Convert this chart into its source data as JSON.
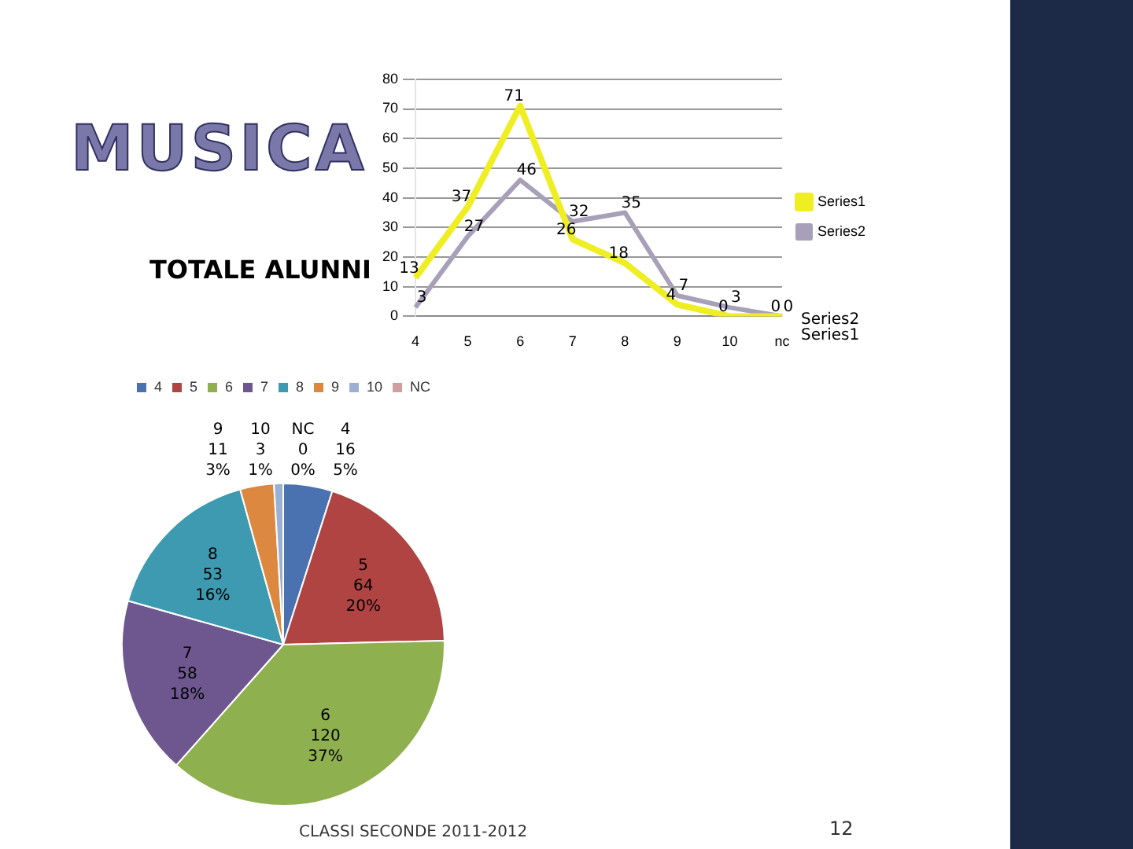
{
  "chart_data": [
    {
      "type": "line",
      "title": "MUSICA",
      "categories": [
        "4",
        "5",
        "6",
        "7",
        "8",
        "9",
        "10",
        "nc"
      ],
      "series": [
        {
          "name": "Series1",
          "color": "#eeee22",
          "values": [
            13,
            37,
            71,
            26,
            18,
            4,
            0,
            0
          ]
        },
        {
          "name": "Series2",
          "color": "#a8a0b8",
          "values": [
            3,
            27,
            46,
            32,
            35,
            7,
            3,
            0
          ]
        }
      ],
      "ylim": [
        0,
        80
      ],
      "yticks": [
        0,
        10,
        20,
        30,
        40,
        50,
        60,
        70,
        80
      ],
      "grid": "y",
      "legend": "right",
      "data_labels": true,
      "marker": "none",
      "annotations": [
        "Series2",
        "Series1",
        "CLASSI SECONDE 2011-2012",
        "12"
      ]
    },
    {
      "type": "pie",
      "title": "TOTALE ALUNNI",
      "categories": [
        "4",
        "5",
        "6",
        "7",
        "8",
        "9",
        "10",
        "NC"
      ],
      "values": [
        16,
        64,
        120,
        58,
        53,
        11,
        3,
        0
      ],
      "colors": [
        "#4a72b0",
        "#b04442",
        "#8fb04f",
        "#6e578f",
        "#3d9ab0",
        "#dd8840",
        "#9cb0d6",
        "#d09ea0"
      ],
      "value_labels": [
        "16\n5%",
        "64\n20%",
        "120\n37%",
        "58\n18%",
        "53\n16%",
        "11\n3%",
        "3\n1%",
        "0\n0%"
      ],
      "legend": "top"
    }
  ]
}
